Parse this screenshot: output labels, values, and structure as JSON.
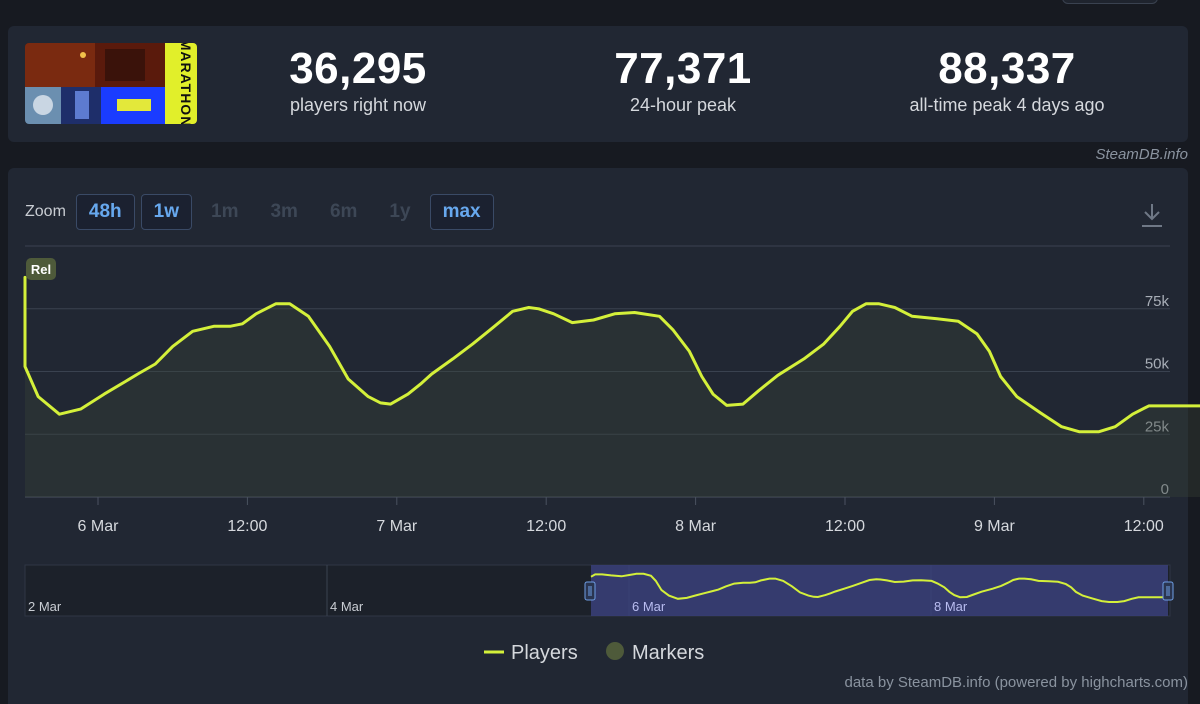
{
  "game": {
    "capsule_text": "MARATHON"
  },
  "stats": [
    {
      "value": "36,295",
      "label": "players right now"
    },
    {
      "value": "77,371",
      "label": "24-hour peak"
    },
    {
      "value": "88,337",
      "label": "all-time peak 4 days ago"
    }
  ],
  "credit_top": "SteamDB.info",
  "zoom": {
    "label": "Zoom",
    "options": [
      {
        "label": "48h",
        "active": true
      },
      {
        "label": "1w",
        "active": true
      },
      {
        "label": "1m",
        "active": false
      },
      {
        "label": "3m",
        "active": false
      },
      {
        "label": "6m",
        "active": false
      },
      {
        "label": "1y",
        "active": false
      },
      {
        "label": "max",
        "active": true
      }
    ]
  },
  "legend": {
    "players": "Players",
    "markers": "Markers"
  },
  "credit_bottom": "data by SteamDB.info (powered by highcharts.com)",
  "colors": {
    "line": "#d4f03a",
    "marker": "#4e5a3a",
    "background": "#212733",
    "navigator_selection": "#3a3f7a"
  },
  "chart_data": {
    "type": "line",
    "title": "",
    "xlabel": "",
    "ylabel": "",
    "x_ticks": [
      "6 Mar",
      "12:00",
      "7 Mar",
      "12:00",
      "8 Mar",
      "12:00",
      "9 Mar",
      "12:00"
    ],
    "y_ticks": [
      "0",
      "25k",
      "50k",
      "75k"
    ],
    "ylim": [
      0,
      100000
    ],
    "grid": true,
    "legend_position": "bottom",
    "series": [
      {
        "name": "Players",
        "x_hours": [
          -19.6,
          -18.8,
          -17.5,
          -15.8,
          -13.8,
          -12.2,
          -11.0,
          -9.6,
          -8.2,
          -7.3,
          -6.2,
          -4.8,
          -3.1,
          -1.4,
          0.5,
          2.2,
          3.2,
          4.6,
          6.0,
          7.6,
          9.3,
          10.6,
          11.6,
          12.7,
          14.3,
          15.4,
          16.9,
          18.6,
          20.1,
          21.7,
          22.7,
          23.5,
          24.9,
          25.9,
          26.8,
          28.5,
          30.1,
          31.6,
          33.3,
          34.6,
          35.4,
          36.6,
          38.1,
          39.8,
          41.5,
          43.1,
          45.1,
          46.2,
          47.5,
          48.5,
          49.4,
          50.5,
          51.8,
          53.1,
          54.6,
          56.7,
          58.3,
          59.6,
          60.6,
          61.7,
          62.7,
          64.0,
          65.4,
          67.4,
          69.1,
          70.6,
          71.6,
          72.5,
          73.8,
          75.7,
          77.4,
          78.8,
          80.4,
          81.7,
          83.1,
          84.4,
          85.6,
          87.1,
          89.0,
          90.0
        ],
        "y": [
          81000,
          86000,
          86000,
          84000,
          82000,
          85000,
          87500,
          87500,
          83000,
          72000,
          52000,
          40000,
          33000,
          35000,
          41000,
          46000,
          49000,
          53000,
          60000,
          66000,
          68000,
          68000,
          69000,
          73000,
          77000,
          77000,
          72000,
          60000,
          47000,
          40000,
          37500,
          37000,
          41000,
          45000,
          49000,
          55000,
          61000,
          67000,
          74000,
          75500,
          75000,
          73000,
          69500,
          70500,
          73000,
          73500,
          72000,
          66500,
          58000,
          48000,
          41000,
          36500,
          37000,
          42500,
          48500,
          55000,
          61000,
          68000,
          74000,
          77000,
          77000,
          75500,
          72000,
          71000,
          70000,
          65000,
          58000,
          48000,
          40000,
          33500,
          28000,
          26000,
          26000,
          28000,
          33000,
          36295,
          36295,
          36295,
          36295,
          36295
        ],
        "marker": {
          "label": "Rel",
          "x_hours": -19.6
        }
      }
    ],
    "navigator": {
      "x_ticks": [
        "2 Mar",
        "4 Mar",
        "6 Mar",
        "8 Mar"
      ],
      "selection_start": "5 Mar",
      "selection_end": "9 Mar"
    }
  }
}
